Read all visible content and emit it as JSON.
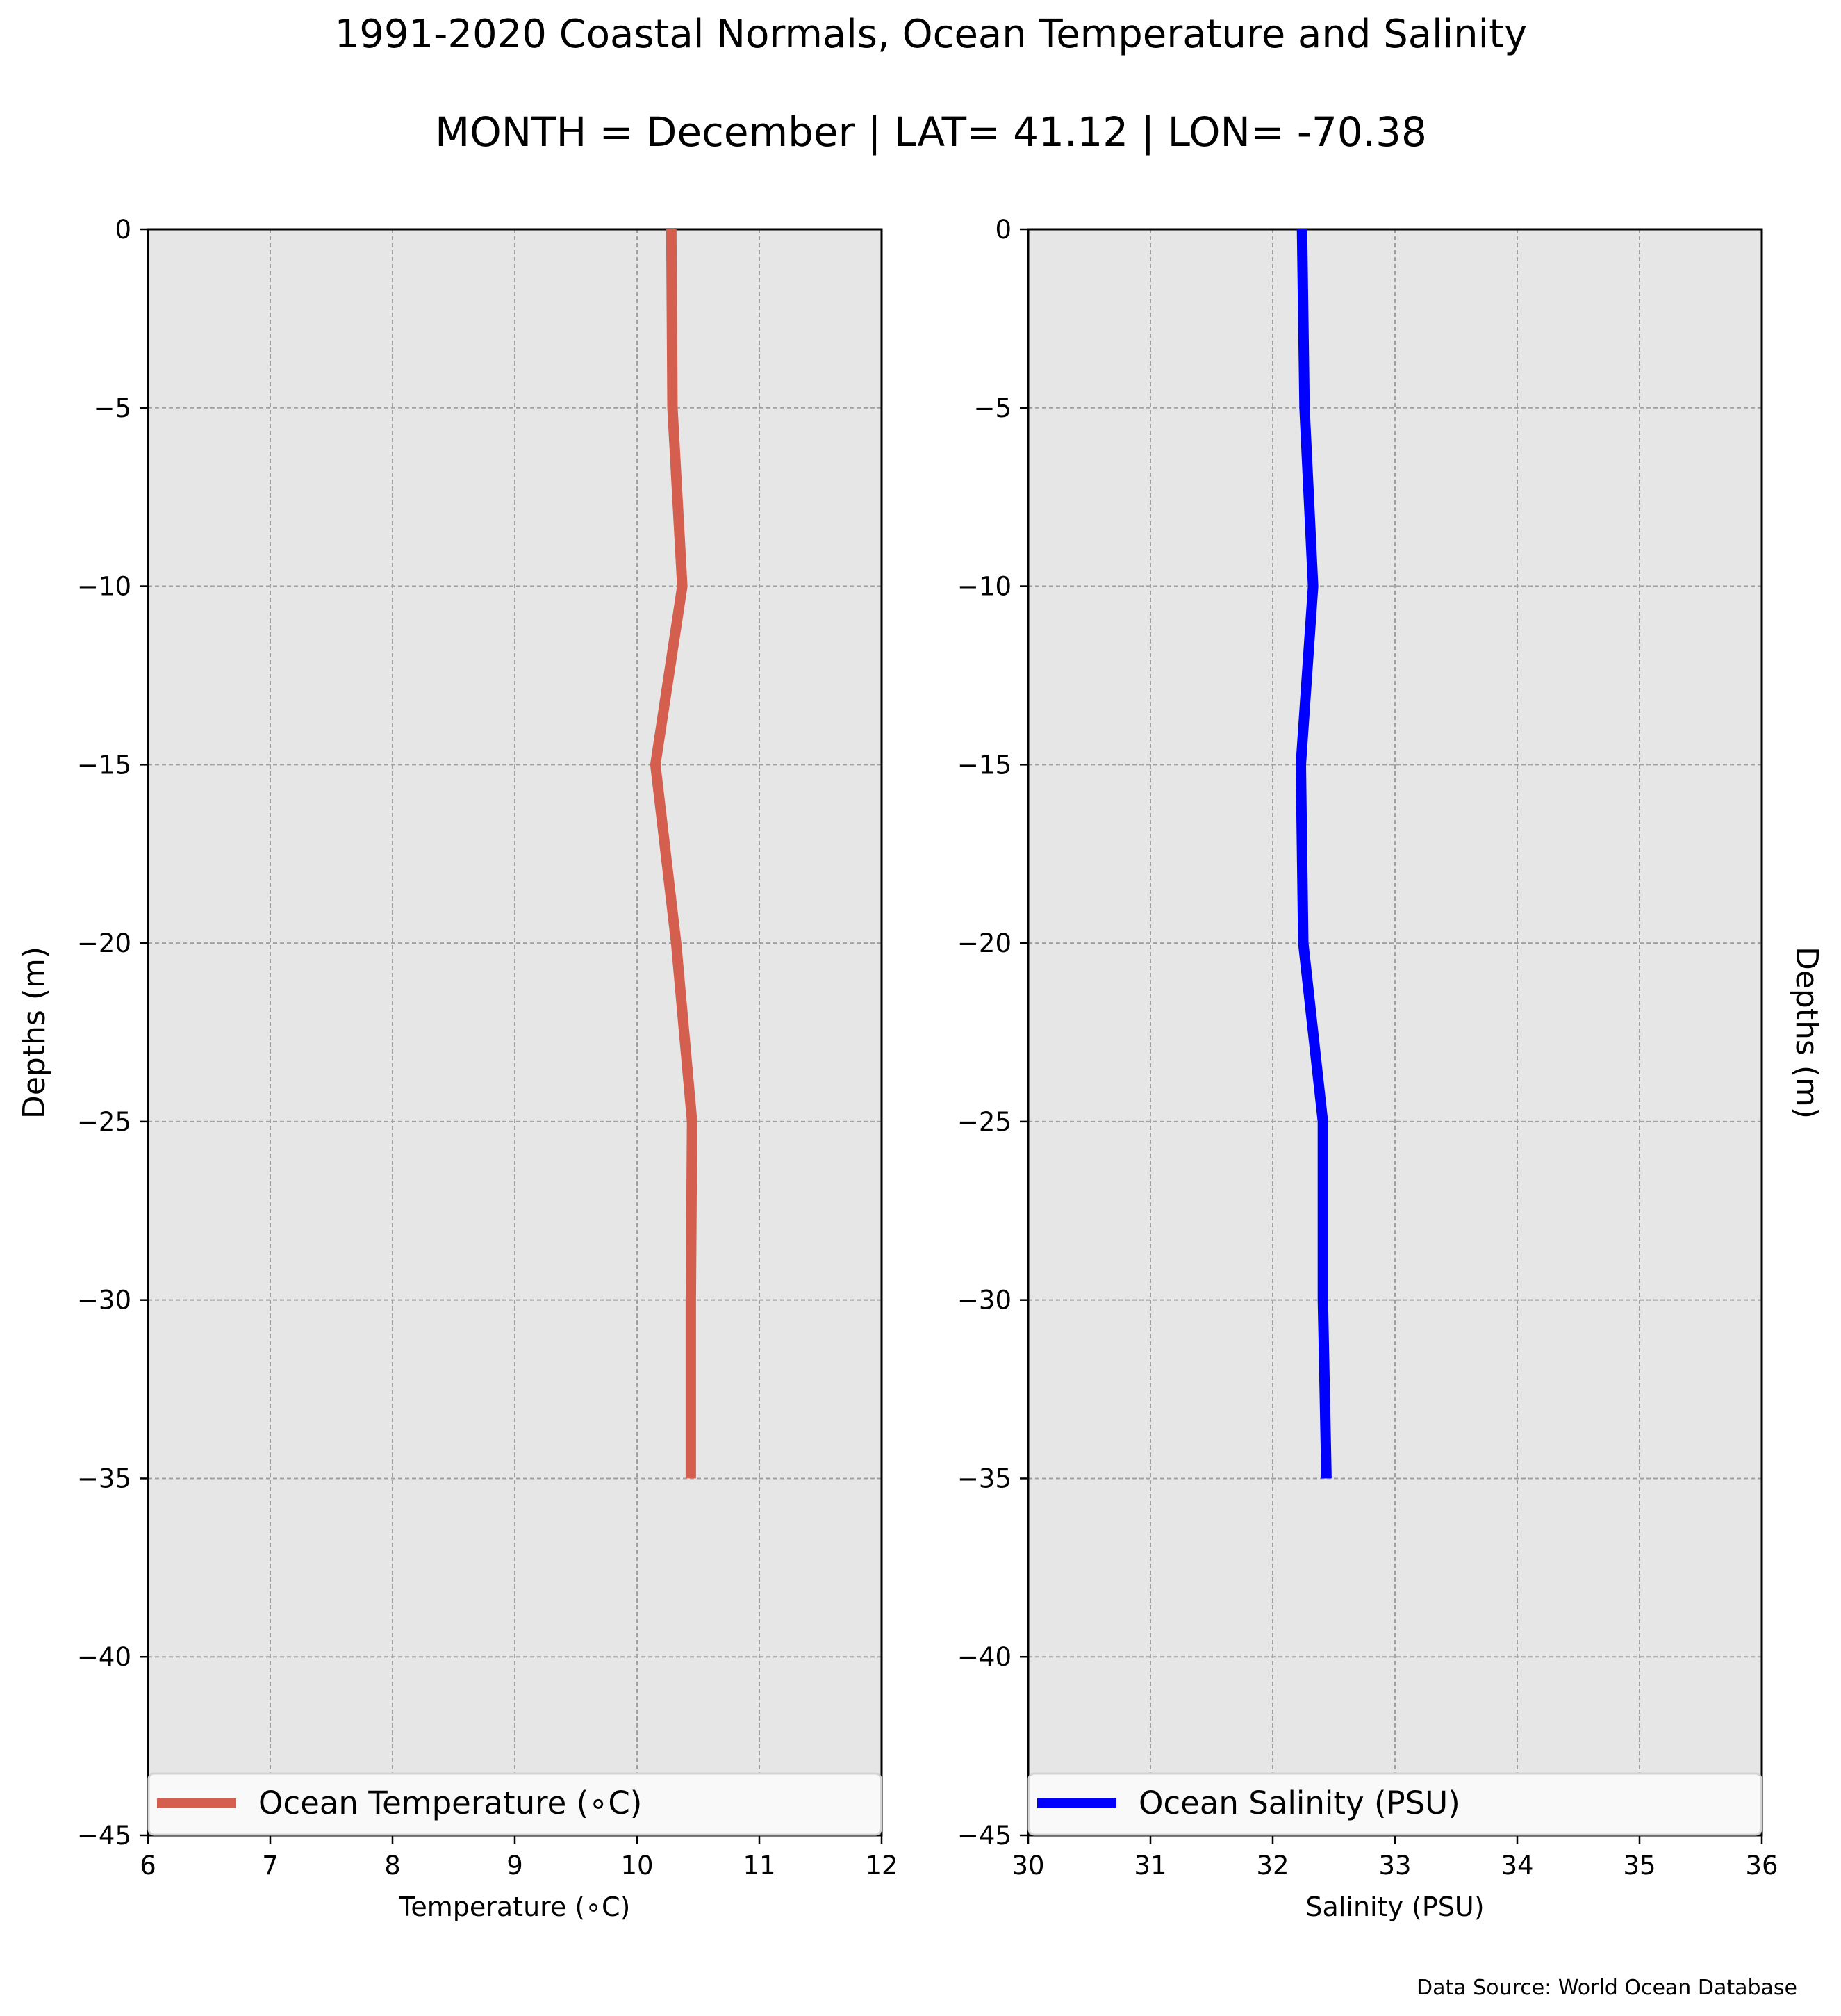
{
  "figure": {
    "title_line1": "1991-2020 Coastal Normals, Ocean Temperature and Salinity",
    "title_line2": "MONTH = December | LAT= 41.12 | LON= -70.38",
    "source_note": "Data Source: World Ocean Database"
  },
  "chart_data": [
    {
      "type": "line",
      "orientation": "vertical-profile",
      "title": "",
      "xlabel": "Temperature (∘C)",
      "ylabel": "Depths (m)",
      "xlim": [
        6,
        12
      ],
      "ylim": [
        -45,
        0
      ],
      "xticks": [
        "6",
        "7",
        "8",
        "9",
        "10",
        "11",
        "12"
      ],
      "yticks": [
        "0",
        "−5",
        "−10",
        "−15",
        "−20",
        "−25",
        "−30",
        "−35",
        "−40",
        "−45"
      ],
      "grid": true,
      "legend_position": "bottom",
      "series": [
        {
          "name": "Ocean Temperature (∘C)",
          "color": "#d45f4e",
          "x": [
            10.28,
            10.29,
            10.37,
            10.15,
            10.32,
            10.45,
            10.44,
            10.44
          ],
          "y": [
            0,
            -5,
            -10,
            -15,
            -20,
            -25,
            -30,
            -35
          ]
        }
      ]
    },
    {
      "type": "line",
      "orientation": "vertical-profile",
      "title": "",
      "xlabel": "Salinity (PSU)",
      "ylabel": "Depths (m)",
      "xlim": [
        30,
        36
      ],
      "ylim": [
        -45,
        0
      ],
      "xticks": [
        "30",
        "31",
        "32",
        "33",
        "34",
        "35",
        "36"
      ],
      "yticks": [
        "0",
        "−5",
        "−10",
        "−15",
        "−20",
        "−25",
        "−30",
        "−35",
        "−40",
        "−45"
      ],
      "grid": true,
      "legend_position": "bottom",
      "series": [
        {
          "name": "Ocean Salinity (PSU)",
          "color": "#0000ff",
          "x": [
            32.24,
            32.26,
            32.33,
            32.23,
            32.25,
            32.41,
            32.41,
            32.44
          ],
          "y": [
            0,
            -5,
            -10,
            -15,
            -20,
            -25,
            -30,
            -35
          ]
        }
      ]
    }
  ]
}
